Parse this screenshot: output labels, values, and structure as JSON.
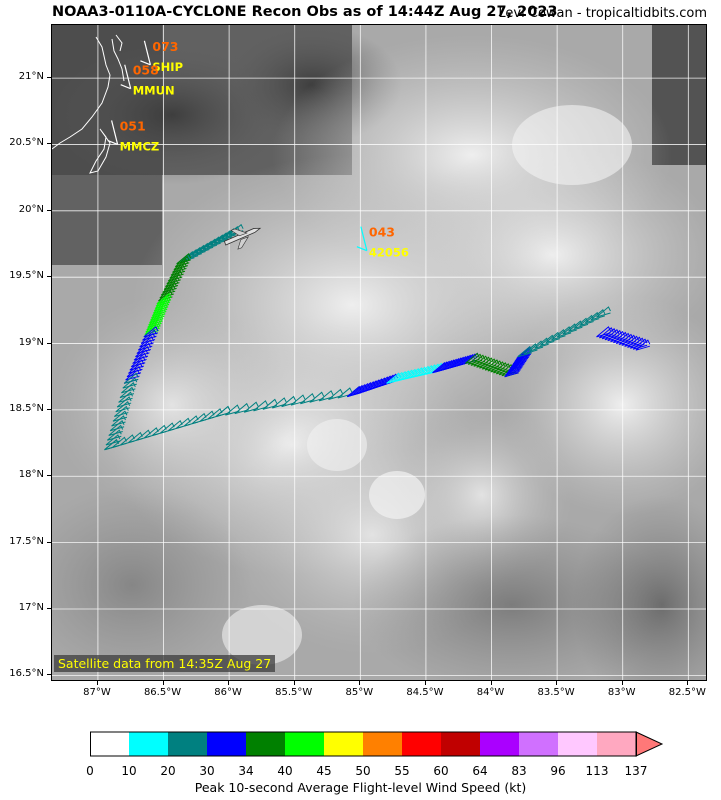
{
  "header": {
    "title": "NOAA3-0110A-CYCLONE Recon Obs as of 14:44Z Aug 27, 2023",
    "credit": "Levi Cowan - tropicaltidbits.com"
  },
  "map": {
    "lon_range": [
      -87.35,
      -82.35
    ],
    "lat_range": [
      16.45,
      21.4
    ],
    "lat_ticks": [
      "21°N",
      "20.5°N",
      "20°N",
      "19.5°N",
      "19°N",
      "18.5°N",
      "18°N",
      "17.5°N",
      "17°N",
      "16.5°N"
    ],
    "lat_values": [
      21,
      20.5,
      20,
      19.5,
      19,
      18.5,
      18,
      17.5,
      17,
      16.5
    ],
    "lon_ticks": [
      "87°W",
      "86.5°W",
      "86°W",
      "85.5°W",
      "85°W",
      "84.5°W",
      "84°W",
      "83.5°W",
      "83°W",
      "82.5°W"
    ],
    "lon_values": [
      -87,
      -86.5,
      -86,
      -85.5,
      -85,
      -84.5,
      -84,
      -83.5,
      -83,
      -82.5
    ],
    "satellite_label": "Satellite data from 14:35Z Aug 27",
    "stations": [
      {
        "id": "SHIP",
        "speed": "073",
        "lon": -86.6,
        "lat": 21.1
      },
      {
        "id": "MMUN",
        "speed": "058",
        "lon": -86.75,
        "lat": 20.92
      },
      {
        "id": "MMCZ",
        "speed": "051",
        "lon": -86.85,
        "lat": 20.5
      },
      {
        "id": "42056",
        "speed": "043",
        "lon": -84.95,
        "lat": 19.7
      }
    ]
  },
  "colorbar": {
    "label": "Peak 10-second Average Flight-level Wind Speed (kt)",
    "ticks": [
      "0",
      "10",
      "20",
      "30",
      "34",
      "40",
      "45",
      "50",
      "55",
      "60",
      "64",
      "83",
      "96",
      "113",
      "137"
    ],
    "colors": [
      "#ffffff",
      "#00ffff",
      "#008080",
      "#0000ff",
      "#008000",
      "#00ff00",
      "#ffff00",
      "#ff8000",
      "#ff0000",
      "#c00000",
      "#aa00ff",
      "#d070ff",
      "#ffc8ff",
      "#ffa8c0"
    ],
    "extend_color": "#ff7878"
  }
}
